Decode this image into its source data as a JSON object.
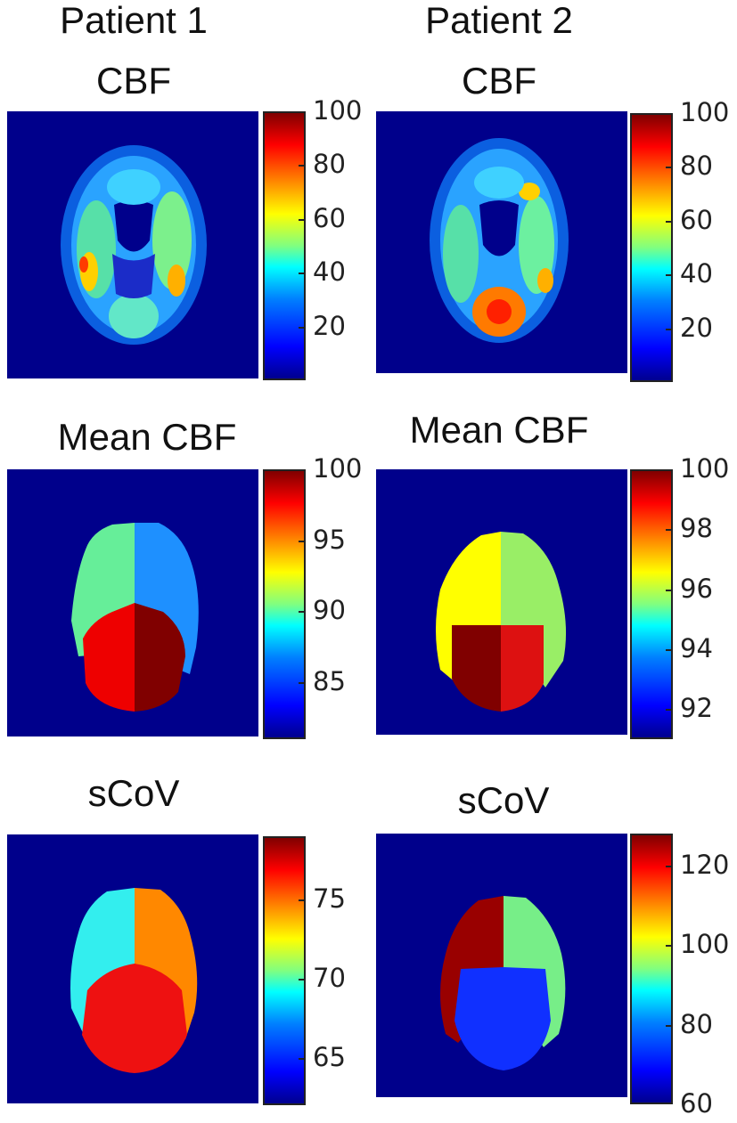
{
  "headers": {
    "patient1": "Patient 1",
    "patient2": "Patient 2",
    "p1_cbf": "CBF",
    "p2_cbf": "CBF",
    "p1_mean": "Mean CBF",
    "p2_mean": "Mean CBF",
    "p1_scov": "sCoV",
    "p2_scov": "sCoV"
  },
  "colorbars": {
    "p1_cbf": {
      "min": 0,
      "max": 100,
      "ticks": [
        "100",
        "80",
        "60",
        "40",
        "20"
      ],
      "values": [
        100,
        80,
        60,
        40,
        20
      ]
    },
    "p2_cbf": {
      "min": 0,
      "max": 100,
      "ticks": [
        "100",
        "80",
        "60",
        "40",
        "20"
      ],
      "values": [
        100,
        80,
        60,
        40,
        20
      ]
    },
    "p1_mean": {
      "min": 81,
      "max": 100,
      "ticks": [
        "100",
        "95",
        "90",
        "85"
      ],
      "values": [
        100,
        95,
        90,
        85
      ]
    },
    "p2_mean": {
      "min": 91,
      "max": 100,
      "ticks": [
        "100",
        "98",
        "96",
        "94",
        "92"
      ],
      "values": [
        100,
        98,
        96,
        94,
        92
      ]
    },
    "p1_scov": {
      "min": 62,
      "max": 79,
      "ticks": [
        "75",
        "70",
        "65"
      ],
      "values": [
        75,
        70,
        65
      ]
    },
    "p2_scov": {
      "min": 60,
      "max": 128,
      "ticks": [
        "120",
        "100",
        "80",
        "60"
      ],
      "values": [
        120,
        100,
        80,
        60
      ]
    }
  },
  "colors": {
    "background": "#00008b",
    "p1_mean": {
      "left_front": "#66ee99",
      "right_front": "#1e90ff",
      "left_back": "#ee0000",
      "right_back": "#800000"
    },
    "p2_mean": {
      "left_front": "#ffff00",
      "right_front": "#99ee66",
      "left_back": "#800000",
      "right_back": "#dd1111"
    },
    "p1_scov": {
      "left_front": "#33eeee",
      "right_front": "#ff8800",
      "left_back": "#ee1111",
      "right_back": "#ee1111"
    },
    "p2_scov": {
      "left_front": "#990000",
      "right_front": "#77ee88",
      "left_back": "#1030ff",
      "right_back": "#1030ff"
    }
  }
}
